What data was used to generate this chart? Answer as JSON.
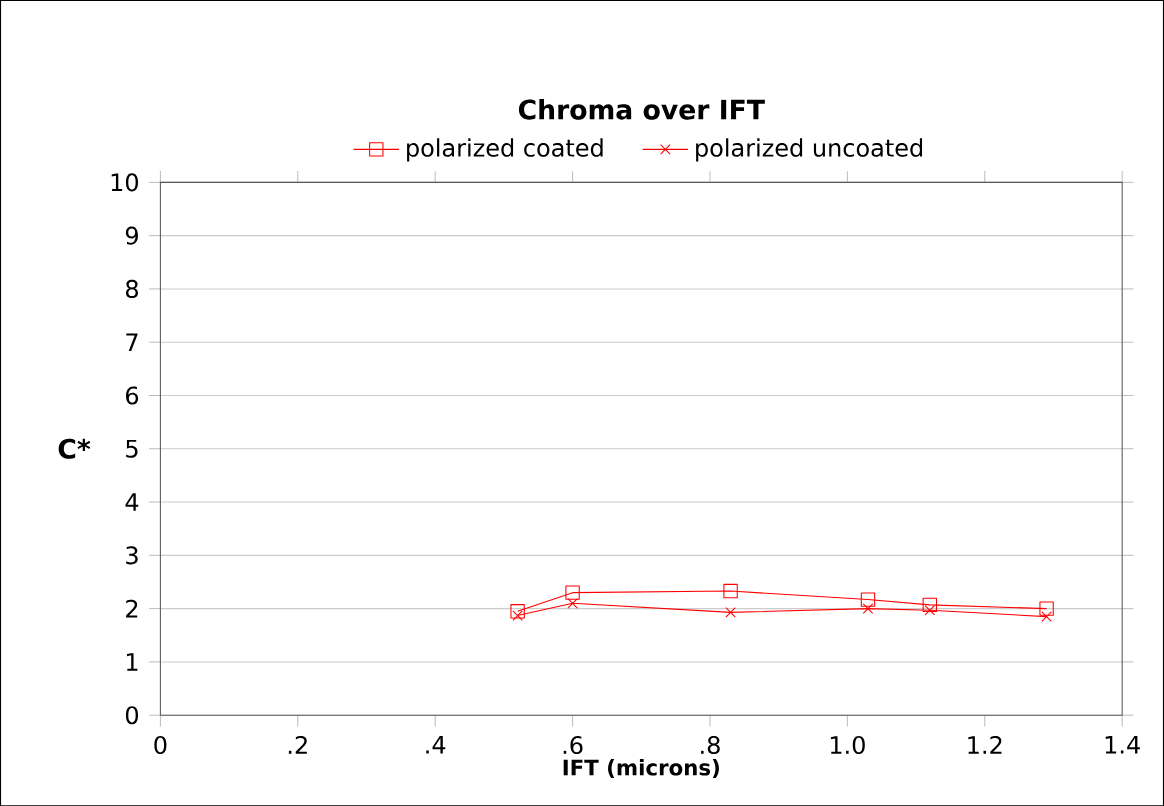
{
  "chart_data": {
    "type": "line",
    "title": "Chroma over IFT",
    "xlabel": "IFT (microns)",
    "ylabel": "C*",
    "x": [
      0.52,
      0.6,
      0.83,
      1.03,
      1.12,
      1.29
    ],
    "series": [
      {
        "name": "polarized coated",
        "color": "#ff0000",
        "marker": "square",
        "values": [
          1.95,
          2.3,
          2.33,
          2.17,
          2.07,
          2.0
        ]
      },
      {
        "name": "polarized uncoated",
        "color": "#ff0000",
        "marker": "cross",
        "values": [
          1.87,
          2.1,
          1.93,
          2.0,
          1.97,
          1.85
        ]
      }
    ],
    "xlim": [
      0,
      1.4
    ],
    "ylim": [
      0,
      10
    ],
    "xticks": [
      0,
      {
        "value": 0.2,
        "label": ".2"
      },
      {
        "value": 0.4,
        "label": ".4"
      },
      {
        "value": 0.6,
        "label": ".6"
      },
      {
        "value": 0.8,
        "label": ".8"
      },
      {
        "value": 1.0,
        "label": "1.0"
      },
      {
        "value": 1.2,
        "label": "1.2"
      },
      {
        "value": 1.4,
        "label": "1.4"
      }
    ],
    "yticks": [
      0,
      1,
      2,
      3,
      4,
      5,
      6,
      7,
      8,
      9,
      10
    ],
    "grid": "y",
    "legend": "top"
  }
}
